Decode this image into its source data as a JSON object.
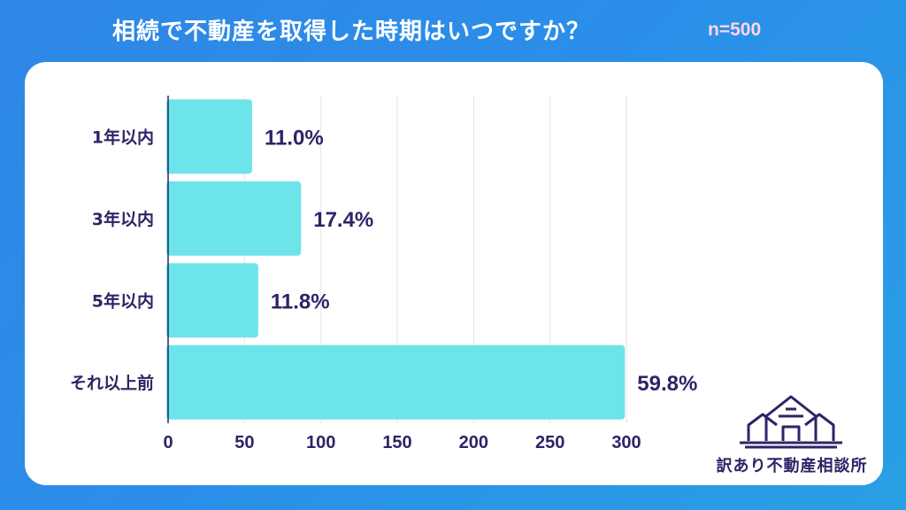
{
  "header": {
    "title": "相続で不動産を取得した時期はいつですか？",
    "sample_size": "n=500"
  },
  "colors": {
    "bar": "#6ce4ea",
    "text": "#2b2566",
    "grid": "#e6e6e6",
    "brand": "#2b2566"
  },
  "logo": {
    "text": "訳あり不動産相談所",
    "icon": "house-logo-icon"
  },
  "chart_data": {
    "type": "bar",
    "orientation": "horizontal",
    "categories": [
      "1年以内",
      "3年以内",
      "5年以内",
      "それ以上前"
    ],
    "values": [
      55,
      87,
      59,
      299
    ],
    "data_labels": [
      "11.0%",
      "17.4%",
      "11.8%",
      "59.8%"
    ],
    "xticks": [
      0,
      50,
      100,
      150,
      200,
      250,
      300
    ],
    "xlim": [
      0,
      300
    ],
    "grid": true
  }
}
